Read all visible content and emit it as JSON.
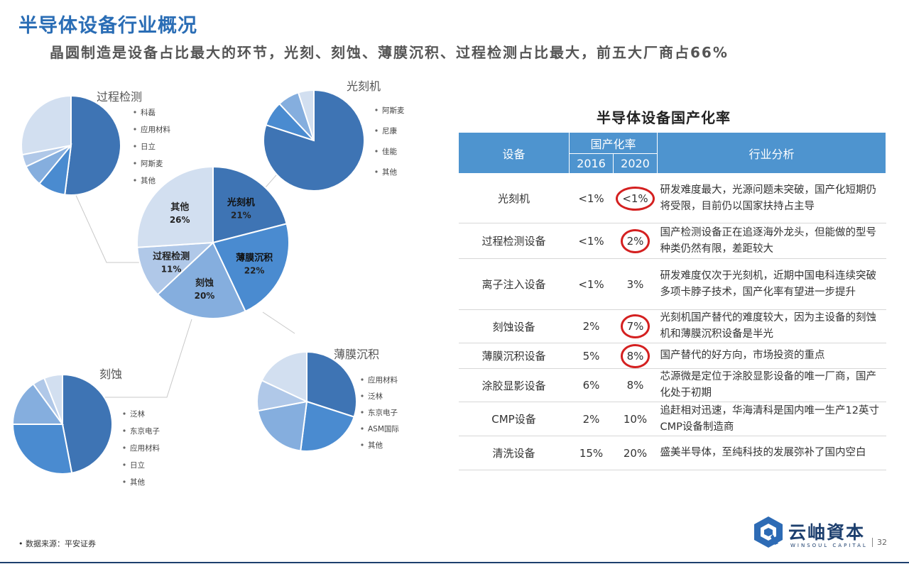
{
  "page": {
    "title": "半导体设备行业概况",
    "subtitle": "晶圆制造是设备占比最大的环节，光刻、刻蚀、薄膜沉积、过程检测占比最大，前五大厂商占66%",
    "source": "数据来源：平安证券",
    "page_number": "32"
  },
  "logo": {
    "name": "云岫資本",
    "sub": "WINSOUL CAPITAL"
  },
  "chart_data": [
    {
      "type": "pie",
      "title": "",
      "categories": [
        "光刻机",
        "薄膜沉积",
        "刻蚀",
        "过程检测",
        "其他"
      ],
      "values": [
        21,
        22,
        20,
        11,
        26
      ],
      "labels": [
        "21%",
        "22%",
        "20%",
        "11%",
        "26%"
      ],
      "colors": [
        "#3e74b4",
        "#4a8bd0",
        "#85aede",
        "#b0c8e8",
        "#d2dff0"
      ]
    },
    {
      "type": "pie",
      "title": "过程检测",
      "legend": [
        "科磊",
        "应用材料",
        "日立",
        "阿斯麦",
        "其他"
      ],
      "values": [
        52,
        9,
        7,
        4,
        28
      ],
      "colors": [
        "#3e74b4",
        "#4a8bd0",
        "#85aede",
        "#b0c8e8",
        "#d2dff0"
      ]
    },
    {
      "type": "pie",
      "title": "光刻机",
      "legend": [
        "阿斯麦",
        "尼康",
        "佳能",
        "其他"
      ],
      "values": [
        80,
        8,
        7,
        5
      ],
      "colors": [
        "#3e74b4",
        "#4a8bd0",
        "#85aede",
        "#d2dff0"
      ]
    },
    {
      "type": "pie",
      "title": "刻蚀",
      "legend": [
        "泛林",
        "东京电子",
        "应用材料",
        "日立",
        "其他"
      ],
      "values": [
        47,
        28,
        15,
        4,
        6
      ],
      "colors": [
        "#3e74b4",
        "#4a8bd0",
        "#85aede",
        "#b0c8e8",
        "#d2dff0"
      ]
    },
    {
      "type": "pie",
      "title": "薄膜沉积",
      "legend": [
        "应用材料",
        "泛林",
        "东京电子",
        "ASM国际",
        "其他"
      ],
      "values": [
        30,
        22,
        20,
        10,
        18
      ],
      "colors": [
        "#3e74b4",
        "#4a8bd0",
        "#85aede",
        "#b0c8e8",
        "#d2dff0"
      ]
    }
  ],
  "table": {
    "title": "半导体设备国产化率",
    "headers": {
      "device": "设备",
      "rate": "国产化率",
      "y2016": "2016",
      "y2020": "2020",
      "analysis": "行业分析"
    },
    "rows": [
      {
        "device": "光刻机",
        "y2016": "<1%",
        "y2020": "<1%",
        "highlight": true,
        "analysis": "研发难度最大，光源问题未突破，国产化短期仍将受限，目前仍以国家扶持占主导"
      },
      {
        "device": "过程检测设备",
        "y2016": "<1%",
        "y2020": "2%",
        "highlight": true,
        "analysis": "国产检测设备正在追逐海外龙头，但能做的型号种类仍然有限，差距较大"
      },
      {
        "device": "离子注入设备",
        "y2016": "<1%",
        "y2020": "3%",
        "highlight": false,
        "analysis": "研发难度仅次于光刻机，近期中国电科连续突破多项卡脖子技术，国产化率有望进一步提升"
      },
      {
        "device": "刻蚀设备",
        "y2016": "2%",
        "y2020": "7%",
        "highlight": true,
        "analysis": "光刻机国产替代的难度较大，因为主设备的刻蚀机和薄膜沉积设备是半光"
      },
      {
        "device": "薄膜沉积设备",
        "y2016": "5%",
        "y2020": "8%",
        "highlight": true,
        "analysis": "国产替代的好方向，市场投资的重点"
      },
      {
        "device": "涂胶显影设备",
        "y2016": "6%",
        "y2020": "8%",
        "highlight": false,
        "analysis": "芯源微是定位于涂胶显影设备的唯一厂商，国产化处于初期"
      },
      {
        "device": "CMP设备",
        "y2016": "2%",
        "y2020": "10%",
        "highlight": false,
        "analysis": "追赶相对迅速，华海清科是国内唯一生产12英寸CMP设备制造商"
      },
      {
        "device": "清洗设备",
        "y2016": "15%",
        "y2020": "20%",
        "highlight": false,
        "analysis": "盛美半导体，至纯科技的发展弥补了国内空白"
      }
    ]
  }
}
